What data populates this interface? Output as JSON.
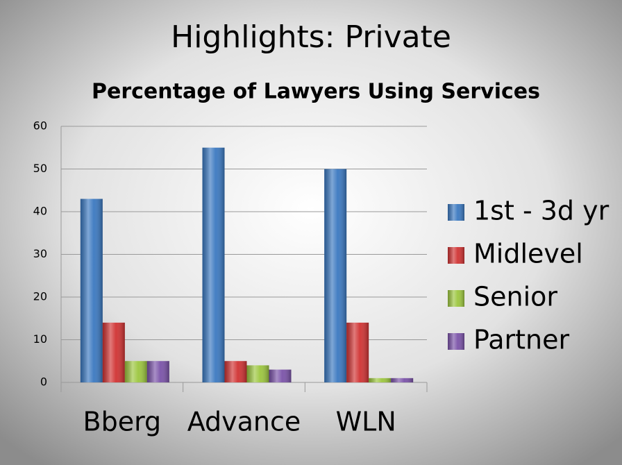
{
  "slide_title": "Highlights: Private",
  "chart_data": {
    "type": "bar",
    "title": "Percentage of Lawyers Using Services",
    "categories": [
      "Bberg",
      "Advance",
      "WLN"
    ],
    "series": [
      {
        "name": "1st - 3d yr",
        "color": "#3a78c0",
        "values": [
          43,
          55,
          50
        ]
      },
      {
        "name": "Midlevel",
        "color": "#d03232",
        "values": [
          14,
          5,
          14
        ]
      },
      {
        "name": "Senior",
        "color": "#9cc63e",
        "values": [
          5,
          4,
          1
        ]
      },
      {
        "name": "Partner",
        "color": "#7a52a8",
        "values": [
          5,
          3,
          1
        ]
      }
    ],
    "ylim": [
      0,
      60
    ],
    "yticks": [
      0,
      10,
      20,
      30,
      40,
      50,
      60
    ],
    "grid": true,
    "legend": "right"
  }
}
